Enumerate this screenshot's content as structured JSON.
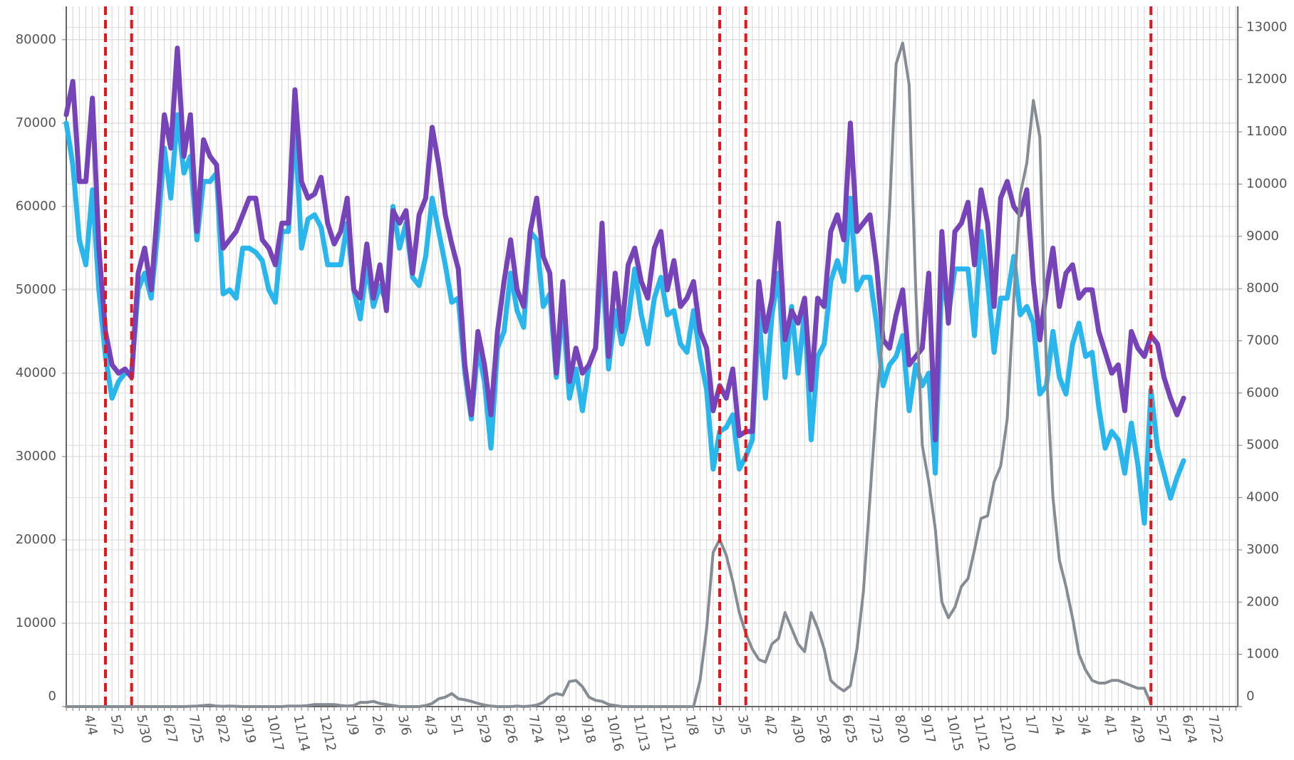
{
  "chart_data": {
    "type": "line",
    "categories": [
      null,
      null,
      null,
      null,
      "4/4",
      null,
      null,
      null,
      "5/2",
      null,
      null,
      null,
      "5/30",
      null,
      null,
      null,
      "6/27",
      null,
      null,
      null,
      "7/25",
      null,
      null,
      null,
      "8/22",
      null,
      null,
      null,
      "9/19",
      null,
      null,
      null,
      "10/17",
      null,
      null,
      null,
      "11/14",
      null,
      null,
      null,
      "12/12",
      null,
      null,
      null,
      "1/9",
      null,
      null,
      null,
      "2/6",
      null,
      null,
      null,
      "3/6",
      null,
      null,
      null,
      "4/3",
      null,
      null,
      null,
      "5/1",
      null,
      null,
      null,
      "5/29",
      null,
      null,
      null,
      "6/26",
      null,
      null,
      null,
      "7/24",
      null,
      null,
      null,
      "8/21",
      null,
      null,
      null,
      "9/18",
      null,
      null,
      null,
      "10/16",
      null,
      null,
      null,
      "11/13",
      null,
      null,
      null,
      "12/11",
      null,
      null,
      null,
      "1/8",
      null,
      null,
      null,
      "2/5",
      null,
      null,
      null,
      "3/5",
      null,
      null,
      null,
      "4/2",
      null,
      null,
      null,
      "4/30",
      null,
      null,
      null,
      "5/28",
      null,
      null,
      null,
      "6/25",
      null,
      null,
      null,
      "7/23",
      null,
      null,
      null,
      "8/20",
      null,
      null,
      null,
      "9/17",
      null,
      null,
      null,
      "10/15",
      null,
      null,
      null,
      "11/12",
      null,
      null,
      null,
      "12/10",
      null,
      null,
      null,
      "1/7",
      null,
      null,
      null,
      "2/4",
      null,
      null,
      null,
      "3/4",
      null,
      null,
      null,
      "4/1",
      null,
      null,
      null,
      "4/29",
      null,
      null,
      null,
      "5/27",
      null,
      null,
      null,
      "6/24",
      null,
      null,
      null,
      "7/22",
      null,
      null,
      null
    ],
    "series": [
      {
        "color": "#29b6ec",
        "axis": "y",
        "values": [
          70000,
          65000,
          56000,
          53000,
          62000,
          50000,
          42000,
          37000,
          39000,
          40000,
          40000,
          50000,
          52000,
          49000,
          57000,
          67000,
          61000,
          71000,
          64000,
          66000,
          56000,
          63000,
          63000,
          64000,
          49500,
          50000,
          49000,
          55000,
          55000,
          54500,
          53500,
          50000,
          48500,
          57000,
          57000,
          70000,
          55000,
          58500,
          59000,
          57500,
          53000,
          53000,
          53000,
          58000,
          50000,
          46500,
          53000,
          48000,
          50500,
          48500,
          60000,
          55000,
          58000,
          51500,
          50500,
          54000,
          61000,
          57000,
          53000,
          48500,
          49000,
          40000,
          34500,
          43000,
          39000,
          31000,
          43000,
          45000,
          52000,
          47500,
          45500,
          57000,
          56000,
          48000,
          49500,
          39500,
          48000,
          37000,
          40500,
          35500,
          41000,
          43000,
          54000,
          40500,
          47500,
          43500,
          46500,
          52500,
          47000,
          43500,
          49000,
          51500,
          47000,
          47500,
          43500,
          42500,
          47500,
          42000,
          38000,
          28500,
          33000,
          33500,
          35000,
          28500,
          30000,
          32000,
          47000,
          37000,
          47000,
          52000,
          39500,
          48000,
          40000,
          47500,
          32000,
          42000,
          43500,
          51000,
          53500,
          51000,
          61000,
          50000,
          51500,
          51500,
          46000,
          38500,
          41000,
          42000,
          44500,
          35500,
          41000,
          38500,
          40000,
          28000,
          52000,
          47000,
          52500,
          52500,
          52500,
          44500,
          57000,
          51000,
          42500,
          49000,
          49000,
          54000,
          47000,
          48000,
          46000,
          37500,
          38500,
          45000,
          39500,
          37500,
          43500,
          46000,
          42000,
          42500,
          36000,
          31000,
          33000,
          32000,
          28000,
          34000,
          29000,
          22000,
          38000,
          31000,
          28000,
          25000,
          27500,
          29500,
          null,
          null,
          null,
          null,
          null,
          null,
          null,
          null
        ]
      },
      {
        "color": "#7743b8",
        "axis": "y",
        "values": [
          71000,
          75000,
          63000,
          63000,
          73000,
          55000,
          45000,
          41000,
          40000,
          40500,
          39500,
          52000,
          55000,
          50000,
          60000,
          71000,
          67000,
          79000,
          66000,
          71000,
          57000,
          68000,
          66000,
          65000,
          55000,
          56000,
          57000,
          59000,
          61000,
          61000,
          56000,
          55000,
          53000,
          58000,
          58000,
          74000,
          63000,
          61000,
          61500,
          63500,
          58000,
          55500,
          57000,
          61000,
          50000,
          49000,
          55500,
          49000,
          53000,
          47500,
          59500,
          58000,
          59500,
          52000,
          59000,
          61000,
          69500,
          65000,
          59000,
          55500,
          52500,
          41000,
          35000,
          45000,
          41000,
          35000,
          45000,
          51000,
          56000,
          50000,
          48000,
          57000,
          61000,
          54000,
          52000,
          40000,
          51000,
          39000,
          43000,
          40000,
          41000,
          43000,
          58000,
          42000,
          52000,
          45000,
          53000,
          55000,
          51000,
          49000,
          55000,
          57000,
          50000,
          53500,
          48000,
          49000,
          51000,
          45000,
          43000,
          35500,
          38500,
          37000,
          40500,
          32500,
          33000,
          33000,
          51000,
          45000,
          49000,
          58000,
          44000,
          47500,
          46000,
          49000,
          38000,
          49000,
          48000,
          57000,
          59000,
          56000,
          70000,
          57000,
          58000,
          59000,
          53000,
          44000,
          43000,
          47000,
          50000,
          41000,
          42000,
          43000,
          52000,
          32000,
          57000,
          46000,
          57000,
          58000,
          60500,
          53000,
          62000,
          58000,
          48000,
          61000,
          63000,
          60000,
          59000,
          62000,
          51000,
          44000,
          50000,
          55000,
          48000,
          52000,
          53000,
          49000,
          50000,
          50000,
          45000,
          42500,
          40000,
          41000,
          35500,
          45000,
          43000,
          42000,
          44500,
          43500,
          39500,
          37000,
          35000,
          37000,
          null,
          null,
          null,
          null,
          null,
          null,
          null,
          null
        ]
      },
      {
        "color": "#858c94",
        "axis": "y2",
        "values": [
          0,
          0,
          0,
          0,
          0,
          0,
          0,
          0,
          0,
          0,
          0,
          0,
          0,
          0,
          0,
          0,
          0,
          0,
          0,
          5,
          10,
          20,
          30,
          10,
          5,
          10,
          5,
          0,
          0,
          0,
          0,
          0,
          0,
          0,
          10,
          10,
          10,
          20,
          40,
          40,
          40,
          40,
          20,
          10,
          20,
          80,
          80,
          100,
          60,
          40,
          20,
          0,
          0,
          0,
          0,
          20,
          60,
          150,
          180,
          250,
          150,
          130,
          100,
          60,
          30,
          10,
          0,
          0,
          0,
          10,
          0,
          10,
          30,
          80,
          200,
          250,
          220,
          480,
          500,
          380,
          180,
          120,
          100,
          40,
          20,
          0,
          0,
          0,
          0,
          0,
          0,
          0,
          0,
          0,
          0,
          0,
          0,
          500,
          1500,
          2950,
          3200,
          2900,
          2400,
          1800,
          1400,
          1100,
          900,
          850,
          1200,
          1300,
          1800,
          1500,
          1200,
          1050,
          1800,
          1500,
          1100,
          500,
          380,
          300,
          400,
          1100,
          2200,
          4000,
          5800,
          7200,
          9500,
          12300,
          12700,
          11900,
          8000,
          5000,
          4300,
          3400,
          2000,
          1700,
          1900,
          2300,
          2450,
          3000,
          3600,
          3650,
          4300,
          4600,
          5500,
          7800,
          9800,
          10400,
          11600,
          10900,
          6500,
          4000,
          2800,
          2300,
          1700,
          1000,
          700,
          500,
          450,
          450,
          500,
          500,
          450,
          400,
          350,
          350,
          50,
          null,
          null,
          null,
          null,
          null,
          null,
          null,
          null,
          null,
          null,
          null,
          null,
          null
        ]
      }
    ],
    "ylim": [
      0,
      84000
    ],
    "yticks": [
      0,
      10000,
      20000,
      30000,
      40000,
      50000,
      60000,
      70000,
      80000
    ],
    "y2lim": [
      0,
      13400
    ],
    "y2ticks": [
      0,
      1000,
      2000,
      3000,
      4000,
      5000,
      6000,
      7000,
      8000,
      9000,
      10000,
      11000,
      12000,
      13000
    ],
    "grid": true,
    "vlines": [
      6,
      10,
      100,
      104,
      166
    ],
    "vline_color": "#e8141b"
  }
}
